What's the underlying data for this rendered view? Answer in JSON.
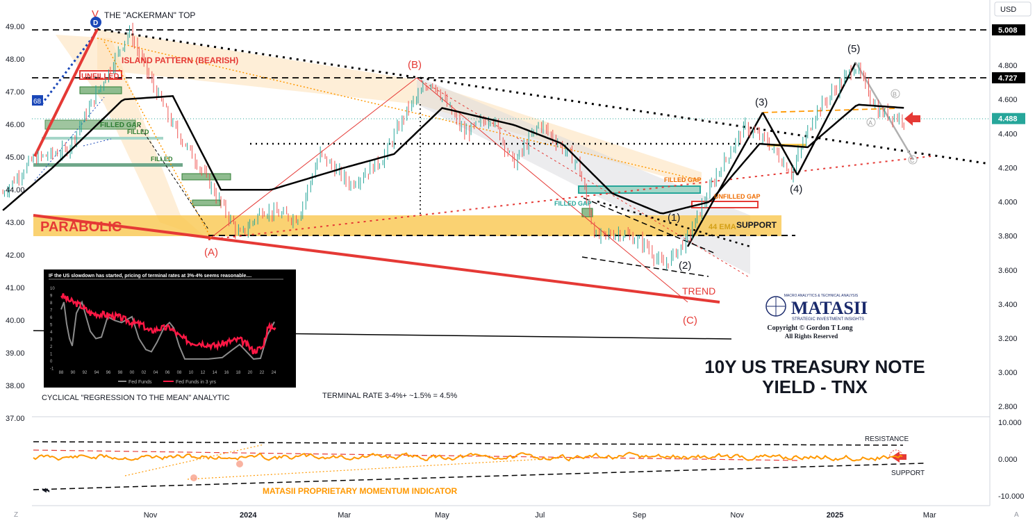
{
  "toolbar": {
    "currency": "USD"
  },
  "chart_data": {
    "type": "line",
    "instrument": "10Y US TREASURY NOTE YIELD - TNX",
    "left_axis": {
      "ticks": [
        "49.00",
        "48.00",
        "47.00",
        "46.00",
        "45.00",
        "44.00",
        "43.00",
        "42.00",
        "41.00",
        "40.00",
        "39.00",
        "38.00",
        "37.00"
      ],
      "range": [
        37,
        49.5
      ]
    },
    "right_axis": {
      "ticks": [
        "4.800",
        "4.600",
        "4.400",
        "4.200",
        "4.000",
        "3.800",
        "3.600",
        "3.400",
        "3.200",
        "3.000",
        "2.800"
      ],
      "range": [
        2.64,
        5.04
      ]
    },
    "right_markers": [
      {
        "label": "5.008",
        "value": 5.008,
        "style": "dark"
      },
      {
        "label": "4.727",
        "value": 4.727,
        "style": "dark"
      },
      {
        "label": "4.488",
        "value": 4.488,
        "style": "current"
      }
    ],
    "left_marker": {
      "label": "68"
    },
    "x_ticks": [
      "Nov",
      "2024",
      "Mar",
      "May",
      "Jul",
      "Sep",
      "Nov",
      "2025",
      "Mar"
    ],
    "price_series_approx": [
      [
        "2023-08-01",
        4.05
      ],
      [
        "2023-08-20",
        4.25
      ],
      [
        "2023-09-10",
        4.3
      ],
      [
        "2023-09-28",
        4.62
      ],
      [
        "2023-10-19",
        5.0
      ],
      [
        "2023-11-01",
        4.72
      ],
      [
        "2023-11-15",
        4.45
      ],
      [
        "2023-12-01",
        4.22
      ],
      [
        "2023-12-27",
        3.8
      ],
      [
        "2024-01-10",
        3.95
      ],
      [
        "2024-02-01",
        3.9
      ],
      [
        "2024-02-15",
        4.28
      ],
      [
        "2024-03-05",
        4.1
      ],
      [
        "2024-03-25",
        4.25
      ],
      [
        "2024-04-10",
        4.55
      ],
      [
        "2024-04-25",
        4.71
      ],
      [
        "2024-05-15",
        4.4
      ],
      [
        "2024-06-01",
        4.5
      ],
      [
        "2024-06-15",
        4.22
      ],
      [
        "2024-07-01",
        4.46
      ],
      [
        "2024-07-25",
        4.22
      ],
      [
        "2024-08-05",
        3.79
      ],
      [
        "2024-08-20",
        3.82
      ],
      [
        "2024-09-05",
        3.75
      ],
      [
        "2024-09-16",
        3.62
      ],
      [
        "2024-10-01",
        3.78
      ],
      [
        "2024-10-20",
        4.17
      ],
      [
        "2024-11-06",
        4.44
      ],
      [
        "2024-11-20",
        4.35
      ],
      [
        "2024-12-05",
        4.17
      ],
      [
        "2024-12-20",
        4.52
      ],
      [
        "2025-01-14",
        4.8
      ],
      [
        "2025-01-28",
        4.53
      ],
      [
        "2025-02-14",
        4.48
      ]
    ],
    "moving_average_approx": [
      [
        "2023-08-01",
        3.95
      ],
      [
        "2023-09-01",
        4.2
      ],
      [
        "2023-10-15",
        4.6
      ],
      [
        "2023-11-15",
        4.62
      ],
      [
        "2023-12-15",
        4.07
      ],
      [
        "2024-01-15",
        4.07
      ],
      [
        "2024-03-01",
        4.2
      ],
      [
        "2024-04-01",
        4.28
      ],
      [
        "2024-05-01",
        4.55
      ],
      [
        "2024-06-15",
        4.45
      ],
      [
        "2024-07-15",
        4.34
      ],
      [
        "2024-08-15",
        4.05
      ],
      [
        "2024-09-15",
        3.93
      ],
      [
        "2024-10-15",
        4.0
      ],
      [
        "2024-11-15",
        4.34
      ],
      [
        "2024-12-15",
        4.32
      ],
      [
        "2025-01-15",
        4.57
      ],
      [
        "2025-02-14",
        4.55
      ]
    ],
    "annotations": {
      "top_title": "THE \"ACKERMAN\" TOP",
      "island": "ISLAND PATTERN (BEARISH)",
      "unfilled1": "UNFILLED",
      "filled_gap1": "FILLED GAP",
      "filled_gap2": "FILLED",
      "filled3": "FILLED",
      "parabolic": "PARABOLIC",
      "filled_gap_orange": "FILLED GAP",
      "filled_gap_green": "FILLED GAP",
      "unfilled_gap": "UNFILLED GAP",
      "ema": "44 EMA",
      "support": "SUPPORT",
      "trend": "TREND",
      "waves": [
        "(A)",
        "(B)",
        "(C)",
        "(1)",
        "(2)",
        "(3)",
        "(4)",
        "(5)"
      ],
      "sub_waves": [
        "A",
        "B",
        "C"
      ],
      "inset_caption": "CYCLICAL \"REGRESSION TO THE MEAN\" ANALYTIC",
      "terminal": "TERMINAL RATE 3-4%+ ~1.5% = 4.5%",
      "main_title_line1": "10Y US TREASURY NOTE",
      "main_title_line2": "YIELD - TNX",
      "logo_top": "MACRO ANALYTICS & TECHNICAL ANALYSIS",
      "logo_name": "MATASII",
      "logo_sub": "STRATEGIC INVESTMENT INSIGHTS",
      "copyright": "Copyright © Gordon T Long",
      "rights": "All Rights Reserved"
    },
    "inset": {
      "title": "IF the US slowdown has started, pricing of terminal rates at 3%-4% seems reasonable....",
      "y_ticks": [
        "10",
        "9",
        "8",
        "7",
        "6",
        "5",
        "4",
        "3",
        "2",
        "1",
        "0",
        "-1"
      ],
      "x_ticks": [
        "88",
        "90",
        "92",
        "94",
        "96",
        "98",
        "00",
        "02",
        "04",
        "06",
        "08",
        "10",
        "12",
        "14",
        "16",
        "18",
        "20",
        "22",
        "24"
      ],
      "legend": [
        "Fed Funds",
        "Fed Funds in 3 yrs"
      ]
    },
    "momentum": {
      "title": "MATASII PROPRIETARY MOMENTUM INDICATOR",
      "y_ticks": [
        "10.000",
        "0.000",
        "-10.000"
      ],
      "resistance": "RESISTANCE",
      "support": "SUPPORT"
    },
    "colors": {
      "price": "#26a69a",
      "ma": "#000000",
      "red": "#e53935",
      "orange": "#ff9800",
      "band": "#f9c74f"
    }
  }
}
